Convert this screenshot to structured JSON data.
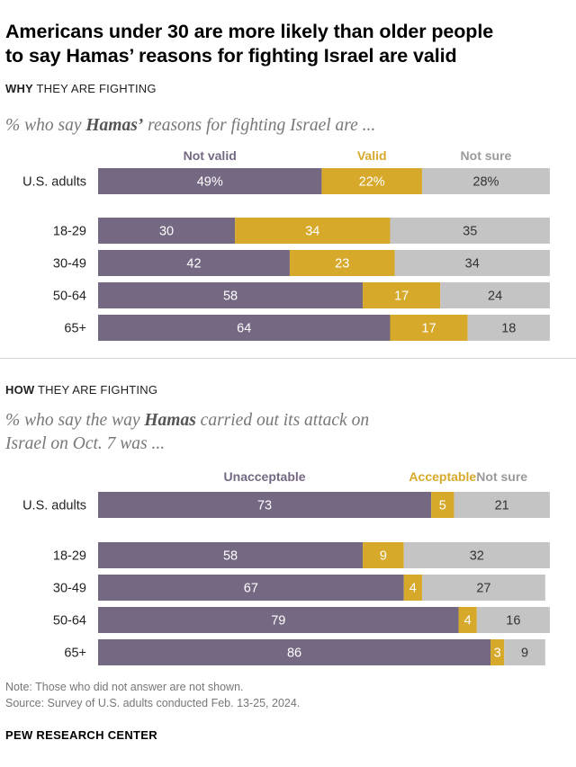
{
  "title_line1": "Americans under 30 are more likely than older people",
  "title_line2": "to say Hamas’ reasons for fighting Israel are valid",
  "colors": {
    "purple": "#756882",
    "gold": "#d6a92b",
    "gray": "#c4c4c4"
  },
  "chart_data": [
    {
      "type": "bar",
      "orientation": "horizontal-stacked",
      "section_label_bold": "WHY",
      "section_label_rest": " THEY ARE FIGHTING",
      "title_pre": "% who say ",
      "title_bold": "Hamas’",
      "title_post": " reasons for fighting Israel are ...",
      "categories": [
        "U.S. adults",
        "18-29",
        "30-49",
        "50-64",
        "65+"
      ],
      "series": [
        {
          "name": "Not valid",
          "color": "#756882",
          "values": [
            49,
            30,
            42,
            58,
            64
          ],
          "labels": [
            "49%",
            "30",
            "42",
            "58",
            "64"
          ]
        },
        {
          "name": "Valid",
          "color": "#d6a92b",
          "values": [
            22,
            34,
            23,
            17,
            17
          ],
          "labels": [
            "22%",
            "34",
            "23",
            "17",
            "17"
          ]
        },
        {
          "name": "Not sure",
          "color": "#c4c4c4",
          "values": [
            28,
            35,
            34,
            24,
            18
          ],
          "labels": [
            "28%",
            "35",
            "34",
            "24",
            "18"
          ]
        }
      ],
      "xlim": [
        0,
        100
      ]
    },
    {
      "type": "bar",
      "orientation": "horizontal-stacked",
      "section_label_bold": "HOW",
      "section_label_rest": " THEY ARE FIGHTING",
      "title_pre": "% who say the way ",
      "title_bold": "Hamas",
      "title_post": " carried out its attack on",
      "title_line2": "Israel on Oct. 7 was ...",
      "categories": [
        "U.S. adults",
        "18-29",
        "30-49",
        "50-64",
        "65+"
      ],
      "series": [
        {
          "name": "Unacceptable",
          "color": "#756882",
          "values": [
            73,
            58,
            67,
            79,
            86
          ],
          "labels": [
            "73",
            "58",
            "67",
            "79",
            "86"
          ]
        },
        {
          "name": "Acceptable",
          "color": "#d6a92b",
          "values": [
            5,
            9,
            4,
            4,
            3
          ],
          "labels": [
            "5",
            "9",
            "4",
            "4",
            "3"
          ]
        },
        {
          "name": "Not sure",
          "color": "#c4c4c4",
          "values": [
            21,
            32,
            27,
            16,
            9
          ],
          "labels": [
            "21",
            "32",
            "27",
            "16",
            "9"
          ]
        }
      ],
      "xlim": [
        0,
        100
      ]
    }
  ],
  "note": "Note: Those who did not answer are not shown.",
  "source": "Source: Survey of U.S. adults conducted Feb. 13-25, 2024.",
  "brand": "PEW RESEARCH CENTER"
}
